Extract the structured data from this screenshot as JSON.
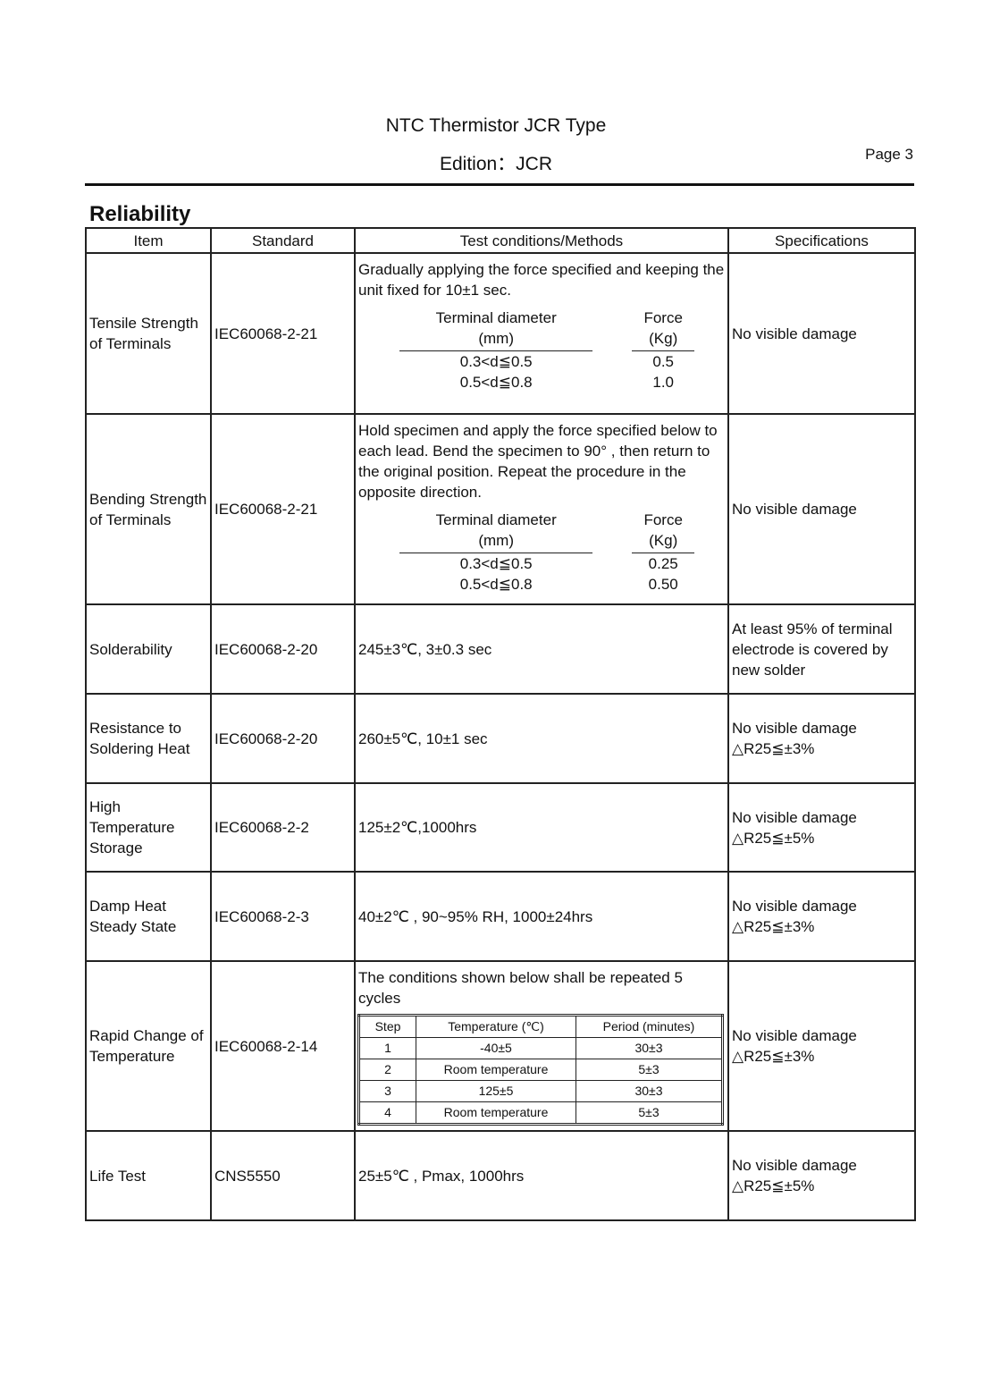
{
  "header": {
    "title": "NTC Thermistor JCR Type",
    "edition": "Edition：JCR",
    "page": "Page 3"
  },
  "section_title": "Reliability",
  "table": {
    "headers": [
      "Item",
      "Standard",
      "Test conditions/Methods",
      "Specifications"
    ],
    "rows": [
      {
        "item": "Tensile Strength of Terminals",
        "standard": "IEC60068-2-21",
        "condition": "Gradually applying the force specified and keeping the unit fixed for 10±1 sec.",
        "subtable": {
          "headers": [
            [
              "Terminal diameter",
              "(mm)"
            ],
            [
              "Force",
              "(Kg)"
            ]
          ],
          "rows": [
            [
              "0.3<d≦0.5",
              "0.5"
            ],
            [
              "0.5<d≦0.8",
              "1.0"
            ]
          ]
        },
        "spec": [
          "No visible damage"
        ]
      },
      {
        "item": "Bending Strength of Terminals",
        "standard": "IEC60068-2-21",
        "condition": "Hold specimen and apply the force specified below to each lead. Bend the specimen to 90° , then return to the original position. Repeat the procedure in the opposite direction.",
        "subtable": {
          "headers": [
            [
              "Terminal diameter",
              "(mm)"
            ],
            [
              "Force",
              "(Kg)"
            ]
          ],
          "rows": [
            [
              "0.3<d≦0.5",
              "0.25"
            ],
            [
              "0.5<d≦0.8",
              "0.50"
            ]
          ]
        },
        "spec": [
          "No visible damage"
        ]
      },
      {
        "item": "Solderability",
        "standard": "IEC60068-2-20",
        "condition": " 245±3℃, 3±0.3 sec",
        "spec": [
          "At least 95% of terminal electrode is covered by new solder"
        ]
      },
      {
        "item": "Resistance to Soldering Heat",
        "standard": "IEC60068-2-20",
        "condition": " 260±5℃, 10±1 sec",
        "spec": [
          "No visible damage",
          "△R25≦±3%"
        ]
      },
      {
        "item": "High Temperature Storage",
        "standard": "IEC60068-2-2",
        "condition": "125±2℃,1000hrs",
        "spec": [
          "No visible damage",
          "△R25≦±5%"
        ]
      },
      {
        "item": "Damp Heat Steady State",
        "standard": "IEC60068-2-3",
        "condition": "40±2℃ , 90~95% RH, 1000±24hrs",
        "spec": [
          "No visible damage",
          "△R25≦±3%"
        ]
      },
      {
        "item": "Rapid Change of Temperature",
        "standard": "IEC60068-2-14",
        "condition": "The conditions shown below shall be repeated 5 cycles",
        "steps": {
          "headers": [
            "Step",
            "Temperature (℃)",
            "Period (minutes)"
          ],
          "rows": [
            [
              "1",
              "-40±5",
              "30±3"
            ],
            [
              "2",
              "Room temperature",
              "5±3"
            ],
            [
              "3",
              "125±5",
              "30±3"
            ],
            [
              "4",
              "Room temperature",
              "5±3"
            ]
          ]
        },
        "spec": [
          "No visible damage",
          "△R25≦±3%"
        ]
      },
      {
        "item": "Life Test",
        "standard": "CNS5550",
        "condition": "25±5℃ , Pmax, 1000hrs",
        "spec": [
          "No visible damage",
          "△R25≦±5%"
        ]
      }
    ]
  }
}
